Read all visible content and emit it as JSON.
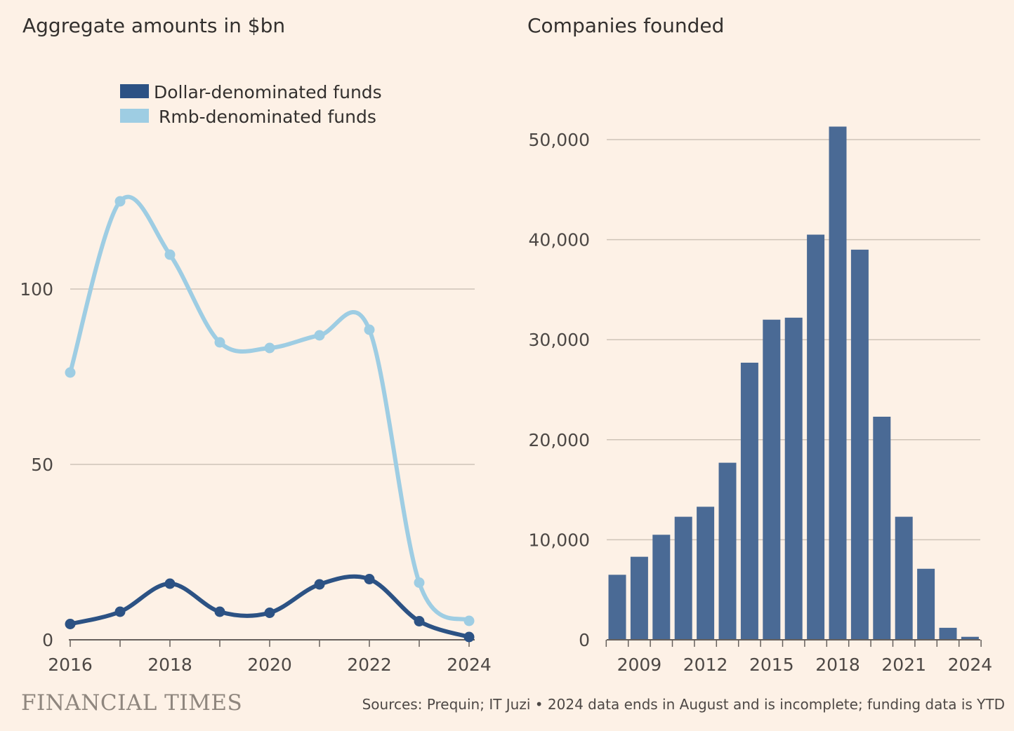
{
  "chart_data": [
    {
      "type": "line",
      "title": "Aggregate amounts in $bn",
      "xlabel": "",
      "ylabel": "",
      "x": [
        2016,
        2017,
        2018,
        2019,
        2020,
        2021,
        2022,
        2023,
        2024
      ],
      "xticks": [
        "2016",
        "2018",
        "2020",
        "2022",
        "2024"
      ],
      "yticks": [
        "0",
        "50",
        "100"
      ],
      "ylim": [
        0,
        130
      ],
      "grid": true,
      "legend_position": "top",
      "series": [
        {
          "name": "Dollar-denominated funds",
          "color": "#2c5284",
          "values": [
            4.5,
            8,
            16,
            8,
            7.7,
            15.8,
            17.3,
            5.3,
            0.8
          ]
        },
        {
          "name": "Rmb-denominated funds",
          "color": "#9ecde3",
          "values": [
            76.2,
            125,
            109.8,
            84.8,
            83.2,
            86.8,
            88.4,
            16.3,
            5.4
          ]
        }
      ]
    },
    {
      "type": "bar",
      "title": "Companies founded",
      "xlabel": "",
      "ylabel": "",
      "categories": [
        2008,
        2009,
        2010,
        2011,
        2012,
        2013,
        2014,
        2015,
        2016,
        2017,
        2018,
        2019,
        2020,
        2021,
        2022,
        2023,
        2024
      ],
      "xticks": [
        "2009",
        "2012",
        "2015",
        "2018",
        "2021",
        "2024"
      ],
      "yticks": [
        "0",
        "10,000",
        "20,000",
        "30,000",
        "40,000",
        "50,000"
      ],
      "values": [
        6500,
        8300,
        10500,
        12300,
        13300,
        17700,
        27700,
        32000,
        32200,
        40500,
        51300,
        39000,
        22300,
        12300,
        7100,
        1200,
        300
      ],
      "ylim": [
        0,
        53000
      ],
      "grid": true,
      "color": "#4a6a95"
    }
  ],
  "footer": {
    "brand": "FINANCIAL TIMES",
    "source": "Sources: Prequin; IT Juzi • 2024 data ends in August and is incomplete; funding data is YTD"
  }
}
